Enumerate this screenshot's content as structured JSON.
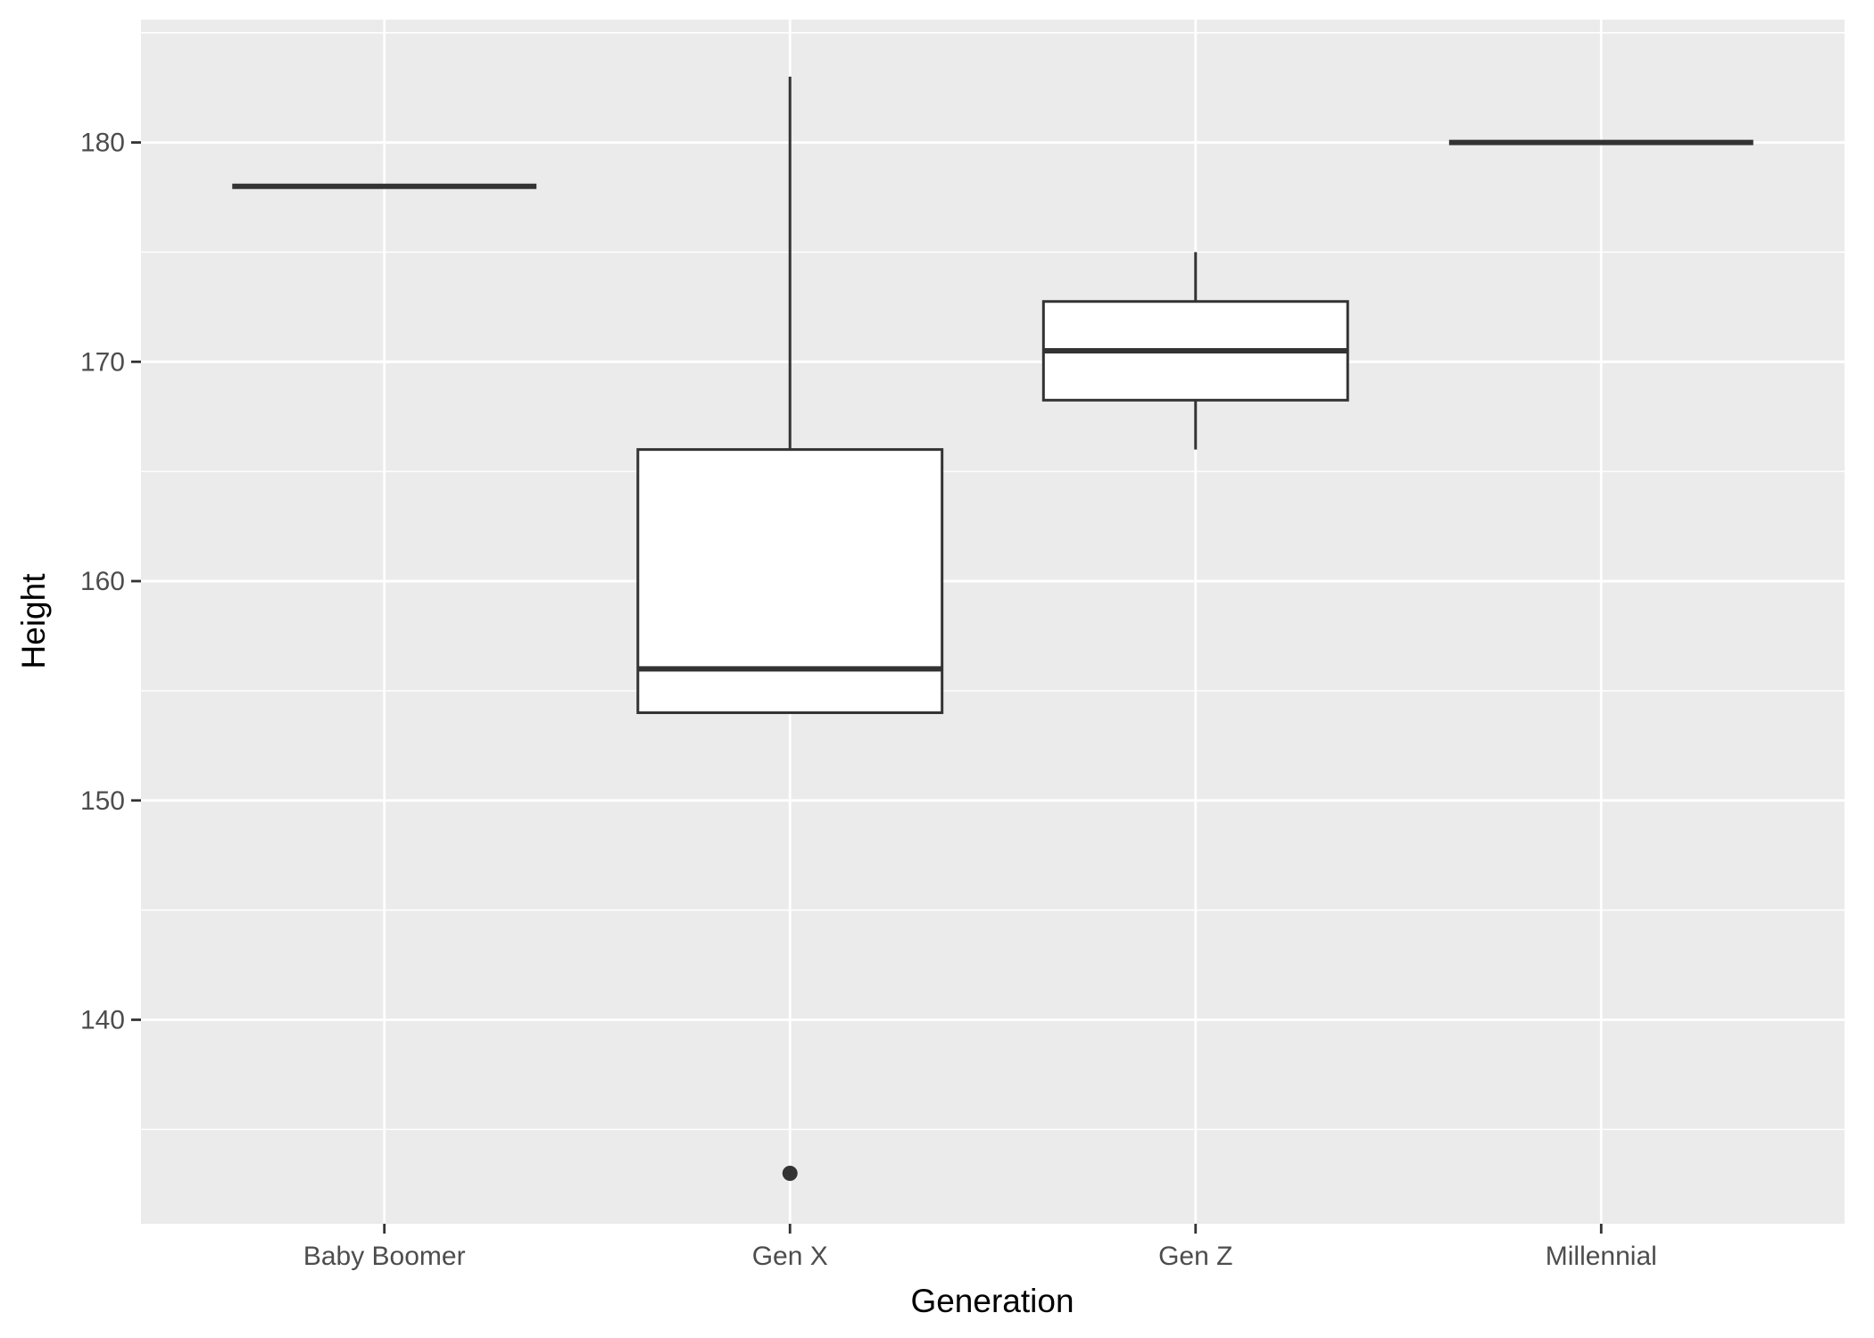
{
  "chart_data": {
    "type": "boxplot",
    "xlabel": "Generation",
    "ylabel": "Height",
    "ylim": [
      130.7,
      185.6
    ],
    "y_ticks": [
      140,
      150,
      160,
      170,
      180
    ],
    "grid": true,
    "categories": [
      "Baby Boomer",
      "Gen X",
      "Gen Z",
      "Millennial"
    ],
    "boxes": [
      {
        "category": "Baby Boomer",
        "min": 178,
        "q1": 178,
        "median": 178,
        "q3": 178,
        "max": 178,
        "outliers": []
      },
      {
        "category": "Gen X",
        "min": 154,
        "q1": 154,
        "median": 156,
        "q3": 166,
        "max": 183,
        "outliers": [
          133
        ]
      },
      {
        "category": "Gen Z",
        "min": 166,
        "q1": 168.25,
        "median": 170.5,
        "q3": 172.75,
        "max": 175,
        "outliers": []
      },
      {
        "category": "Millennial",
        "min": 180,
        "q1": 180,
        "median": 180,
        "q3": 180,
        "max": 180,
        "outliers": []
      }
    ],
    "colors": {
      "panel_background": "#ebebeb",
      "grid": "#ffffff",
      "box_fill": "#ffffff",
      "box_line": "#333333",
      "tick": "#333333",
      "tick_label": "#4d4d4d",
      "axis_title": "#000000"
    }
  }
}
